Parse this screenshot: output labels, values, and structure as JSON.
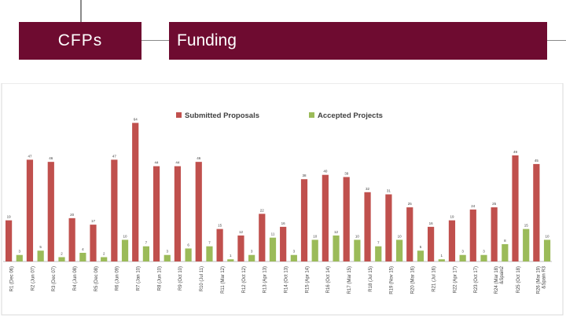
{
  "header": {
    "left_title": "CFPs",
    "right_title": "Funding",
    "banner_color": "#6e0b30"
  },
  "chart_data": {
    "type": "bar",
    "title": "",
    "xlabel": "",
    "ylabel": "",
    "ylim": [
      0,
      66
    ],
    "grid": false,
    "legend_position": "top",
    "categories": [
      "R1 (Dec 06)",
      "R2 (Jun 07)",
      "R3 (Dec 07)",
      "R4 (Jun 08)",
      "R5 (Dec 08)",
      "R6 (Jun 09)",
      "R7 (Jan 10)",
      "R8 (Jun 10)",
      "R9 (Oct 10)",
      "R10 (Jul 11)",
      "R11 (Mar 12)",
      "R12 (Oct 12)",
      "R13 (Apr 13)",
      "R14 (Oct 13)",
      "R15 (Apr 14)",
      "R16 (Oct 14)",
      "R17 (Mar 15)",
      "R18 (Jul 15)",
      "R19 (Nov 15)",
      "R20 (Mar 16)",
      "R21 (Jul 16)",
      "R22 (Apr 17)",
      "R23 (Oct 17)",
      "R24 (Mar 18) &Spain2",
      "R25 (Oct 18)",
      "R26 (Mar 19) &Spain R3"
    ],
    "series": [
      {
        "name": "Submitted Proposals",
        "color": "#c0504d",
        "values": [
          19,
          47,
          46,
          20,
          17,
          47,
          64,
          44,
          44,
          46,
          15,
          12,
          22,
          16,
          38,
          40,
          39,
          32,
          31,
          25,
          16,
          19,
          24,
          25,
          49,
          45
        ]
      },
      {
        "name": "Accepted Projects",
        "color": "#9bbb59",
        "values": [
          3,
          5,
          2,
          4,
          2,
          10,
          7,
          3,
          6,
          7,
          1,
          3,
          11,
          3,
          10,
          12,
          10,
          7,
          10,
          5,
          1,
          3,
          3,
          8,
          15,
          10
        ]
      }
    ]
  }
}
